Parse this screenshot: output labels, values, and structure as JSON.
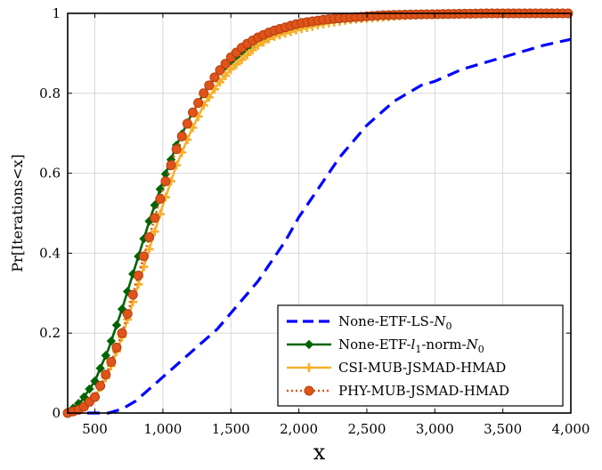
{
  "chart_data": {
    "type": "line",
    "xlabel": "x",
    "ylabel": "Pr[Iterations<x]",
    "xlim": [
      300,
      4000
    ],
    "ylim": [
      0,
      1
    ],
    "x_ticks": [
      500,
      1000,
      1500,
      2000,
      2500,
      3000,
      3500,
      4000
    ],
    "x_tick_labels": [
      "500",
      "1,000",
      "1,500",
      "2,000",
      "2,500",
      "3,000",
      "3,500",
      "4,000"
    ],
    "y_ticks": [
      0,
      0.2,
      0.4,
      0.6,
      0.8,
      1
    ],
    "y_tick_labels": [
      "0",
      "0.2",
      "0.4",
      "0.6",
      "0.8",
      "1"
    ],
    "grid": true,
    "legend_position": "bottom-right",
    "series": [
      {
        "name": "None-ETF-LS-N0",
        "color": "#0000ff",
        "style": "dashed",
        "marker": "none",
        "x": [
          300,
          400,
          500,
          600,
          700,
          800,
          900,
          1000,
          1100,
          1200,
          1300,
          1400,
          1500,
          1600,
          1700,
          1800,
          1900,
          2000,
          2100,
          2200,
          2300,
          2400,
          2500,
          2600,
          2700,
          2800,
          2900,
          3000,
          3200,
          3400,
          3600,
          3800,
          4000
        ],
        "y": [
          0,
          0,
          0,
          0,
          0.01,
          0.03,
          0.06,
          0.09,
          0.12,
          0.15,
          0.18,
          0.21,
          0.25,
          0.29,
          0.33,
          0.38,
          0.43,
          0.49,
          0.54,
          0.59,
          0.64,
          0.68,
          0.72,
          0.75,
          0.78,
          0.8,
          0.82,
          0.83,
          0.86,
          0.88,
          0.9,
          0.92,
          0.935
        ]
      },
      {
        "name": "None-ETF-l1-norm-N0",
        "color": "#006400",
        "style": "solid",
        "marker": "diamond",
        "x": [
          300,
          400,
          500,
          600,
          700,
          800,
          900,
          1000,
          1100,
          1200,
          1300,
          1400,
          1500,
          1600,
          1700,
          1800,
          1900,
          2000,
          2200,
          2400,
          2600,
          2800,
          3000,
          3200,
          3400,
          3600,
          3800,
          4000
        ],
        "y": [
          0.0,
          0.03,
          0.08,
          0.16,
          0.26,
          0.37,
          0.48,
          0.58,
          0.67,
          0.74,
          0.8,
          0.85,
          0.88,
          0.91,
          0.93,
          0.95,
          0.96,
          0.97,
          0.985,
          0.99,
          0.995,
          0.997,
          0.998,
          0.999,
          1.0,
          1.0,
          1.0,
          1.0
        ]
      },
      {
        "name": "CSI-MUB-JSMAD-HMAD",
        "color": "#f5b02a",
        "style": "solid",
        "marker": "plus",
        "x": [
          300,
          400,
          500,
          600,
          700,
          800,
          900,
          1000,
          1100,
          1200,
          1300,
          1400,
          1500,
          1600,
          1700,
          1800,
          1900,
          2000,
          2200,
          2400,
          2600,
          2800,
          3000,
          3200,
          3400,
          3600,
          3800,
          4000
        ],
        "y": [
          0.0,
          0.01,
          0.04,
          0.1,
          0.19,
          0.3,
          0.41,
          0.52,
          0.62,
          0.7,
          0.77,
          0.82,
          0.86,
          0.89,
          0.92,
          0.94,
          0.95,
          0.96,
          0.975,
          0.985,
          0.99,
          0.995,
          0.997,
          0.998,
          0.999,
          1.0,
          1.0,
          1.0
        ]
      },
      {
        "name": "PHY-MUB-JSMAD-HMAD",
        "color": "#e0541a",
        "style": "dotted",
        "marker": "circle",
        "x": [
          300,
          400,
          500,
          600,
          700,
          800,
          900,
          1000,
          1100,
          1200,
          1300,
          1400,
          1500,
          1600,
          1700,
          1800,
          1900,
          2000,
          2200,
          2400,
          2600,
          2800,
          3000,
          3200,
          3400,
          3600,
          3800,
          4000
        ],
        "y": [
          0.0,
          0.01,
          0.04,
          0.11,
          0.2,
          0.32,
          0.44,
          0.56,
          0.66,
          0.74,
          0.8,
          0.85,
          0.89,
          0.92,
          0.94,
          0.955,
          0.965,
          0.975,
          0.985,
          0.99,
          0.995,
          0.997,
          0.998,
          0.999,
          1.0,
          1.0,
          1.0,
          1.0
        ]
      }
    ]
  }
}
